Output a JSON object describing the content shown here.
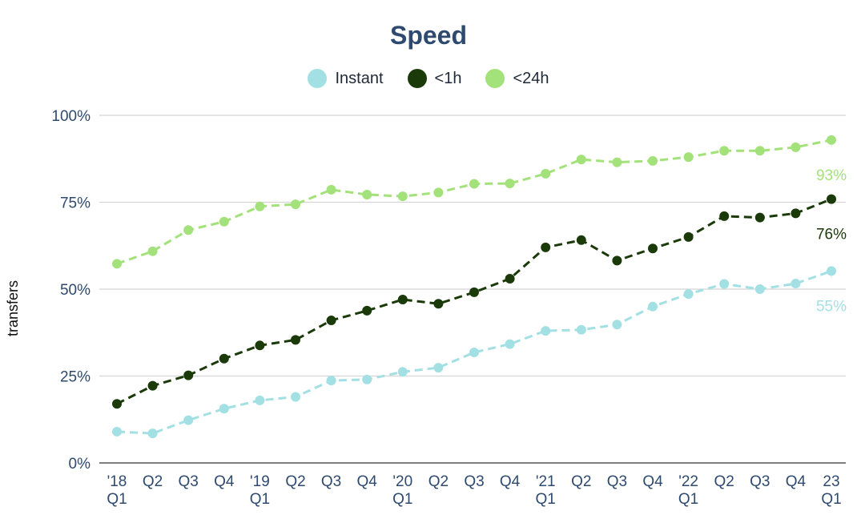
{
  "chart_data": {
    "type": "line",
    "title": "Speed",
    "xlabel": "",
    "ylabel": "transfers",
    "ylim": [
      0,
      100
    ],
    "y_ticks": [
      "0%",
      "25%",
      "50%",
      "75%",
      "100%"
    ],
    "grid": true,
    "legend_position": "top-center",
    "categories": [
      [
        "'18",
        "Q1"
      ],
      [
        "Q2"
      ],
      [
        "Q3"
      ],
      [
        "Q4"
      ],
      [
        "'19",
        "Q1"
      ],
      [
        "Q2"
      ],
      [
        "Q3"
      ],
      [
        "Q4"
      ],
      [
        "'20",
        "Q1"
      ],
      [
        "Q2"
      ],
      [
        "Q3"
      ],
      [
        "Q4"
      ],
      [
        "'21",
        "Q1"
      ],
      [
        "Q2"
      ],
      [
        "Q3"
      ],
      [
        "Q4"
      ],
      [
        "'22",
        "Q1"
      ],
      [
        "Q2"
      ],
      [
        "Q3"
      ],
      [
        "Q4"
      ],
      [
        "23",
        "Q1"
      ]
    ],
    "series": [
      {
        "name": "Instant",
        "color": "#a3e0e4",
        "values": [
          9,
          8.5,
          12.3,
          15.6,
          18,
          19,
          23.7,
          24,
          26.2,
          27.4,
          31.8,
          34.2,
          38,
          38.3,
          39.8,
          45,
          48.6,
          51.5,
          50,
          51.6,
          55.2
        ],
        "end_label": "55%"
      },
      {
        "name": "<1h",
        "color": "#1b3a0a",
        "values": [
          17,
          22.2,
          25.2,
          30,
          33.8,
          35.4,
          41,
          43.8,
          47,
          45.8,
          49.1,
          53,
          62,
          64.1,
          58.2,
          61.7,
          65,
          71,
          70.6,
          71.8,
          75.9
        ],
        "end_label": "76%"
      },
      {
        "name": "<24h",
        "color": "#a3e27a",
        "values": [
          57.3,
          60.9,
          67,
          69.4,
          73.8,
          74.4,
          78.6,
          77.2,
          76.7,
          77.8,
          80.3,
          80.4,
          83.2,
          87.3,
          86.5,
          86.9,
          88,
          89.8,
          89.8,
          90.8,
          92.9
        ],
        "end_label": "93%"
      }
    ]
  }
}
